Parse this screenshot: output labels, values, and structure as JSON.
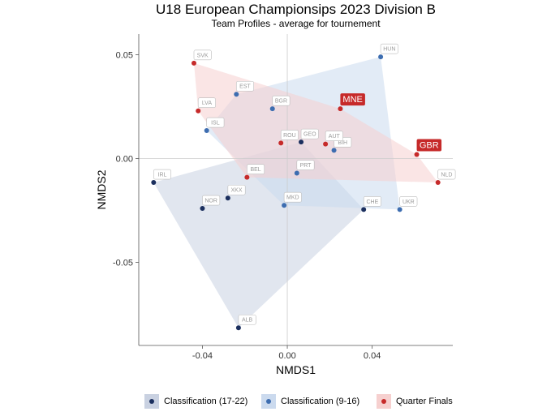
{
  "chart_data": {
    "type": "scatter",
    "title": "U18 European Championsips 2023 Division B",
    "subtitle": "Team Profiles - average for tournement",
    "xlabel": "NMDS1",
    "ylabel": "NMDS2",
    "xlim": [
      -0.07,
      0.078
    ],
    "ylim": [
      -0.09,
      0.06
    ],
    "x_ticks": [
      -0.04,
      0.0,
      0.04
    ],
    "x_tick_labels": [
      "-0.04",
      "0.00",
      "0.04"
    ],
    "y_ticks": [
      -0.05,
      0.0,
      0.05
    ],
    "y_tick_labels": [
      "-0.05",
      "0.00",
      "0.05"
    ],
    "grid": false,
    "zero_lines": true,
    "legend_position": "bottom",
    "groups": [
      {
        "name": "Classification (17-22)",
        "color": "#1b2f5e",
        "fill": "#c9d1e1"
      },
      {
        "name": "Classification (9-16)",
        "color": "#3d6db0",
        "fill": "#cbdaee"
      },
      {
        "name": "Quarter Finals",
        "color": "#c62a2a",
        "fill": "#f6d0cf"
      }
    ],
    "points": [
      {
        "label": "IRL",
        "x": -0.063,
        "y": -0.0115,
        "group": 0,
        "highlight": false
      },
      {
        "label": "NOR",
        "x": -0.04,
        "y": -0.024,
        "group": 0,
        "highlight": false
      },
      {
        "label": "XKX",
        "x": -0.028,
        "y": -0.019,
        "group": 0,
        "highlight": false
      },
      {
        "label": "ALB",
        "x": -0.023,
        "y": -0.0815,
        "group": 0,
        "highlight": false
      },
      {
        "label": "CHE",
        "x": 0.036,
        "y": -0.0245,
        "group": 0,
        "highlight": false
      },
      {
        "label": "GEO",
        "x": 0.0065,
        "y": 0.008,
        "group": 0,
        "highlight": false
      },
      {
        "label": "HUN",
        "x": 0.044,
        "y": 0.049,
        "group": 1,
        "highlight": false
      },
      {
        "label": "EST",
        "x": -0.024,
        "y": 0.031,
        "group": 1,
        "highlight": false
      },
      {
        "label": "BGR",
        "x": -0.007,
        "y": 0.024,
        "group": 1,
        "highlight": false
      },
      {
        "label": "ISL",
        "x": -0.038,
        "y": 0.0135,
        "group": 1,
        "highlight": false
      },
      {
        "label": "BIH",
        "x": 0.022,
        "y": 0.004,
        "group": 1,
        "highlight": false
      },
      {
        "label": "PRT",
        "x": 0.0045,
        "y": -0.007,
        "group": 1,
        "highlight": false
      },
      {
        "label": "MKD",
        "x": -0.0015,
        "y": -0.0225,
        "group": 1,
        "highlight": false
      },
      {
        "label": "UKR",
        "x": 0.053,
        "y": -0.0245,
        "group": 1,
        "highlight": false
      },
      {
        "label": "SVK",
        "x": -0.044,
        "y": 0.046,
        "group": 2,
        "highlight": false
      },
      {
        "label": "LVA",
        "x": -0.042,
        "y": 0.023,
        "group": 2,
        "highlight": false
      },
      {
        "label": "MNE",
        "x": 0.025,
        "y": 0.024,
        "group": 2,
        "highlight": true
      },
      {
        "label": "ROU",
        "x": -0.003,
        "y": 0.0075,
        "group": 2,
        "highlight": false
      },
      {
        "label": "AUT",
        "x": 0.018,
        "y": 0.007,
        "group": 2,
        "highlight": false
      },
      {
        "label": "GBR",
        "x": 0.061,
        "y": 0.002,
        "group": 2,
        "highlight": true
      },
      {
        "label": "BEL",
        "x": -0.019,
        "y": -0.009,
        "group": 2,
        "highlight": false
      },
      {
        "label": "NLD",
        "x": 0.071,
        "y": -0.0115,
        "group": 2,
        "highlight": false
      }
    ]
  }
}
